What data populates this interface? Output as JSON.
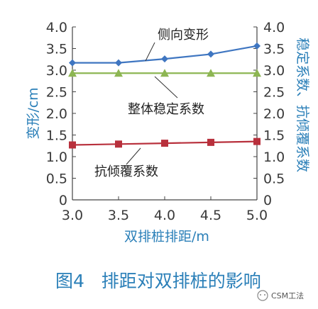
{
  "chart_data": {
    "type": "line",
    "title": "",
    "caption": "图4   排距对双排桩的影响",
    "xlabel": "双排桩排距/m",
    "ylabel_left": "变形/cm",
    "ylabel_right": "稳定系数、抗倾覆系数",
    "x": [
      3.0,
      3.5,
      4.0,
      4.5,
      5.0
    ],
    "x_tick_labels": [
      "3.0",
      "3.5",
      "4.0",
      "4.5",
      "5.0"
    ],
    "y_tick_labels": [
      "0",
      "0.5",
      "1.0",
      "1.5",
      "2.0",
      "2.5",
      "3.0",
      "3.5",
      "4.0"
    ],
    "xlim": [
      3.0,
      5.0
    ],
    "ylim_left": [
      0,
      4.0
    ],
    "ylim_right": [
      0,
      4.0
    ],
    "grid": false,
    "series": [
      {
        "name": "侧向变形",
        "axis": "left",
        "color": "#3f76c1",
        "marker": "diamond",
        "values": [
          3.17,
          3.17,
          3.26,
          3.37,
          3.56
        ]
      },
      {
        "name": "整体稳定系数",
        "axis": "right",
        "color": "#8db653",
        "marker": "triangle",
        "values": [
          2.93,
          2.93,
          2.93,
          2.93,
          2.93
        ]
      },
      {
        "name": "抗倾覆系数",
        "axis": "right",
        "color": "#b8303c",
        "marker": "square",
        "values": [
          1.27,
          1.29,
          1.31,
          1.33,
          1.35
        ]
      }
    ]
  },
  "watermark": "CSM工法"
}
